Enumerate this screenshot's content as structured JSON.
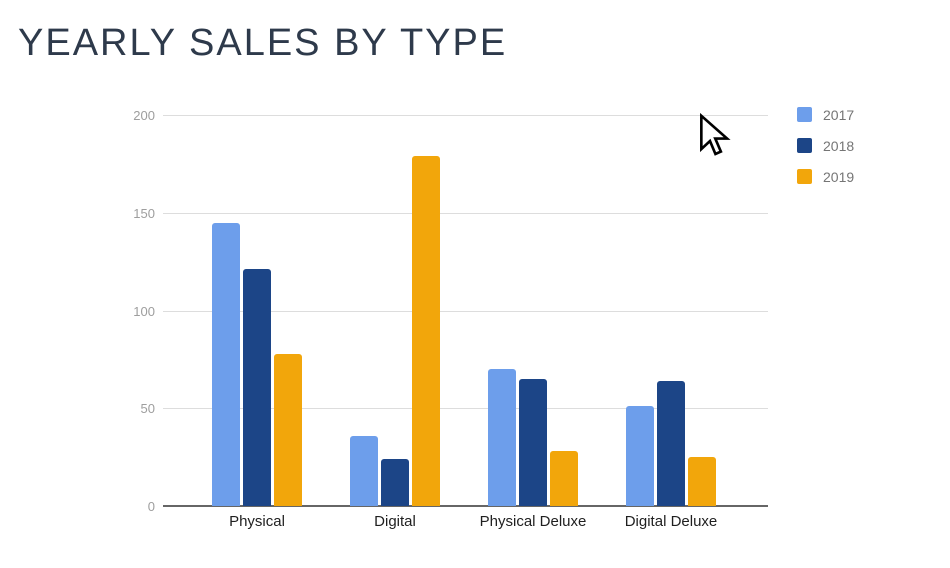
{
  "title": "YEARLY SALES BY TYPE",
  "chart_data": {
    "type": "bar",
    "title": "YEARLY SALES BY TYPE",
    "categories": [
      "Physical",
      "Digital",
      "Physical Deluxe",
      "Digital Deluxe"
    ],
    "series": [
      {
        "name": "2017",
        "color": "#6d9eeb",
        "values": [
          145,
          36,
          70,
          51
        ]
      },
      {
        "name": "2018",
        "color": "#1c4587",
        "values": [
          121,
          24,
          65,
          64
        ]
      },
      {
        "name": "2019",
        "color": "#f2a60b",
        "values": [
          78,
          179,
          28,
          25
        ]
      }
    ],
    "xlabel": "",
    "ylabel": "",
    "yticks": [
      0,
      50,
      100,
      150,
      200
    ],
    "ylim": [
      0,
      200
    ],
    "grid": true,
    "legend_position": "right",
    "legend_entries": [
      "2017",
      "2018",
      "2019"
    ]
  },
  "colors": {
    "title_text": "#2e3a4b",
    "gridline": "#dddddd",
    "axis_line": "#666666",
    "tick_text": "#9e9e9e",
    "category_text": "#1f1f1f",
    "legend_text": "#757575",
    "background": "#ffffff"
  },
  "cursor": {
    "shape": "arrow-pointer"
  }
}
